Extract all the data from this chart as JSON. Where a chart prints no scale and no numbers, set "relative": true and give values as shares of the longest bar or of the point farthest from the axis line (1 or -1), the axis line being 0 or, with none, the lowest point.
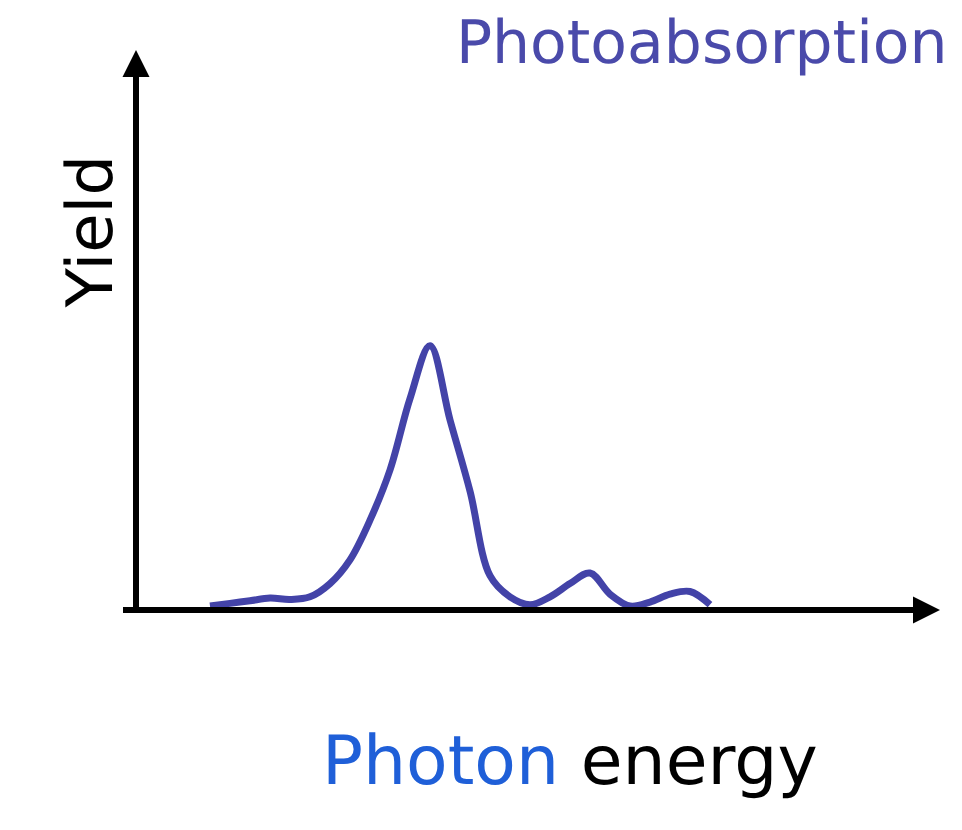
{
  "chart_data": {
    "type": "line",
    "title": "Photoabsorption",
    "xlabel": "Photon energy",
    "ylabel": "Yield",
    "relative": true,
    "categories": [
      null,
      null,
      null,
      null,
      null,
      null,
      null,
      null,
      null,
      null,
      null,
      null,
      null,
      null,
      null,
      null,
      null,
      null,
      null,
      null,
      null,
      null,
      null,
      null,
      null,
      null
    ],
    "series": [
      {
        "color": "#4343a8",
        "values": [
          0.015,
          0.025,
          0.035,
          0.045,
          0.04,
          0.05,
          0.1,
          0.19,
          0.34,
          0.53,
          0.8,
          1.0,
          0.72,
          0.45,
          0.13,
          0.05,
          0.02,
          0.05,
          0.1,
          0.14,
          0.06,
          0.015,
          0.03,
          0.06,
          0.07,
          0.02
        ]
      }
    ],
    "marker": "none",
    "line_style": "solid"
  }
}
